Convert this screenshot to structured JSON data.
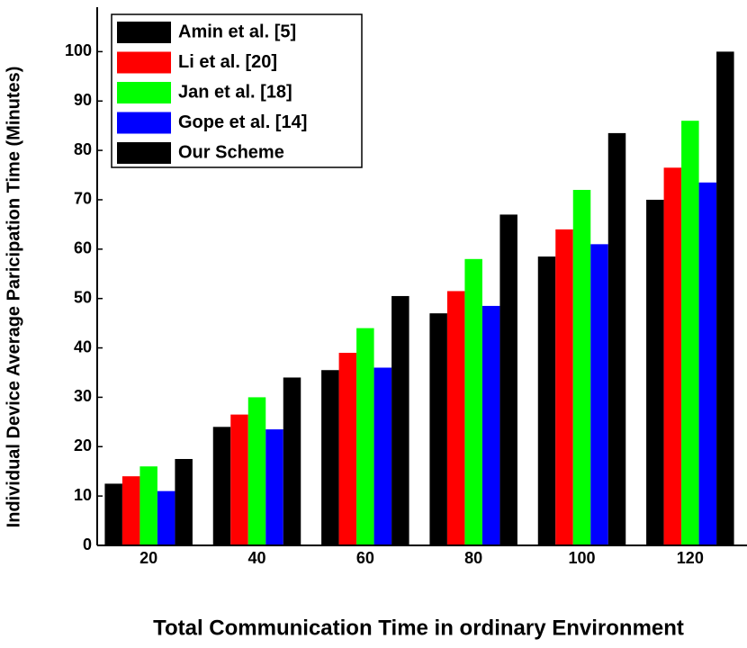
{
  "chart_data": {
    "type": "bar",
    "x_label": "Total Communication Time in  ordinary Environment",
    "y_label": "Individual Device Average Paricipation Time  (Minutes)",
    "categories": [
      "20",
      "40",
      "60",
      "80",
      "100",
      "120"
    ],
    "series": [
      {
        "name": "Amin et al. [5]",
        "color": "#000000",
        "values": [
          12.5,
          24,
          35.5,
          47,
          58.5,
          70
        ]
      },
      {
        "name": "Li et al. [20]",
        "color": "#ff0000",
        "values": [
          14,
          26.5,
          39,
          51.5,
          64,
          76.5
        ]
      },
      {
        "name": "Jan et al. [18]",
        "color": "#00ff00",
        "values": [
          16,
          30,
          44,
          58,
          72,
          86
        ]
      },
      {
        "name": "Gope et al. [14]",
        "color": "#0000ff",
        "values": [
          11,
          23.5,
          36,
          48.5,
          61,
          73.5
        ]
      },
      {
        "name": "Our Scheme",
        "color": "#000000",
        "values": [
          17.5,
          34,
          50.5,
          67,
          83.5,
          100
        ]
      }
    ],
    "ylim": [
      0,
      109
    ],
    "yticks": [
      0,
      10,
      20,
      30,
      40,
      50,
      60,
      70,
      80,
      90,
      100
    ],
    "legend": "upper left"
  }
}
